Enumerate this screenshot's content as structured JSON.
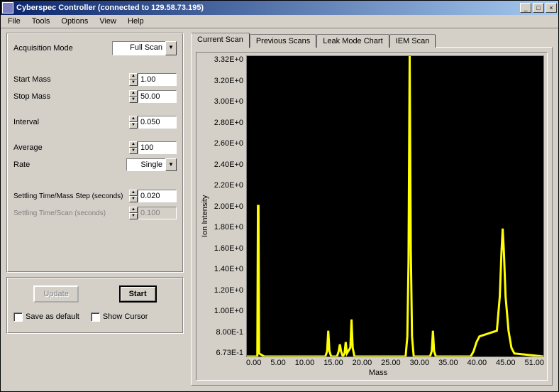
{
  "window": {
    "title": "Cyberspec Controller (connected to 129.58.73.195)"
  },
  "menubar": [
    "File",
    "Tools",
    "Options",
    "View",
    "Help"
  ],
  "acquisition": {
    "mode_label": "Acquisition Mode",
    "mode_value": "Full Scan",
    "start_mass_label": "Start Mass",
    "start_mass_value": "1.00",
    "stop_mass_label": "Stop Mass",
    "stop_mass_value": "50.00",
    "interval_label": "Interval",
    "interval_value": "0.050",
    "average_label": "Average",
    "average_value": "100",
    "rate_label": "Rate",
    "rate_value": "Single",
    "settling_step_label": "Settling Time/Mass Step (seconds)",
    "settling_step_value": "0.020",
    "settling_scan_label": "Settling Time/Scan (seconds)",
    "settling_scan_value": "0.100"
  },
  "buttons": {
    "update": "Update",
    "start": "Start",
    "save_default": "Save as default",
    "show_cursor": "Show Cursor"
  },
  "tabs": [
    "Current Scan",
    "Previous Scans",
    "Leak Mode Chart",
    "IEM Scan"
  ],
  "chart": {
    "y_label": "Ion Intensity",
    "x_label": "Mass",
    "y_ticks": [
      "3.32E+0",
      "3.20E+0",
      "3.00E+0",
      "2.80E+0",
      "2.60E+0",
      "2.40E+0",
      "2.20E+0",
      "2.00E+0",
      "1.80E+0",
      "1.60E+0",
      "1.40E+0",
      "1.20E+0",
      "1.00E+0",
      "8.00E-1",
      "6.73E-1"
    ],
    "x_ticks": [
      "0.00",
      "5.00",
      "10.00",
      "15.00",
      "20.00",
      "25.00",
      "30.00",
      "35.00",
      "40.00",
      "45.00",
      "51.00"
    ],
    "line_color": "#ffff00",
    "background": "#000000",
    "trace_points": [
      [
        0,
        0.673
      ],
      [
        1.8,
        0.673
      ],
      [
        1.9,
        2.0
      ],
      [
        2.0,
        2.0
      ],
      [
        2.1,
        0.7
      ],
      [
        3,
        0.673
      ],
      [
        13.5,
        0.673
      ],
      [
        13.8,
        0.72
      ],
      [
        14.0,
        0.9
      ],
      [
        14.2,
        0.72
      ],
      [
        14.5,
        0.673
      ],
      [
        15.5,
        0.673
      ],
      [
        15.8,
        0.72
      ],
      [
        16.0,
        0.78
      ],
      [
        16.2,
        0.72
      ],
      [
        16.5,
        0.673
      ],
      [
        16.8,
        0.7
      ],
      [
        17.0,
        0.8
      ],
      [
        17.2,
        0.7
      ],
      [
        17.8,
        0.75
      ],
      [
        18.0,
        1.0
      ],
      [
        18.2,
        0.75
      ],
      [
        18.5,
        0.673
      ],
      [
        27.3,
        0.673
      ],
      [
        27.6,
        0.85
      ],
      [
        27.8,
        1.5
      ],
      [
        28.0,
        3.32
      ],
      [
        28.2,
        1.6
      ],
      [
        28.4,
        0.85
      ],
      [
        28.7,
        0.673
      ],
      [
        31.5,
        0.673
      ],
      [
        31.8,
        0.72
      ],
      [
        32.0,
        0.9
      ],
      [
        32.2,
        0.72
      ],
      [
        32.5,
        0.673
      ],
      [
        38.5,
        0.673
      ],
      [
        39.0,
        0.72
      ],
      [
        39.5,
        0.8
      ],
      [
        40.0,
        0.85
      ],
      [
        43.0,
        0.9
      ],
      [
        43.5,
        1.2
      ],
      [
        43.8,
        1.6
      ],
      [
        44.0,
        1.8
      ],
      [
        44.2,
        1.6
      ],
      [
        44.5,
        1.2
      ],
      [
        45.0,
        0.9
      ],
      [
        45.5,
        0.75
      ],
      [
        46.0,
        0.7
      ],
      [
        51.0,
        0.673
      ]
    ],
    "y_min": 0.673,
    "y_max": 3.32,
    "x_min": 0,
    "x_max": 51
  }
}
